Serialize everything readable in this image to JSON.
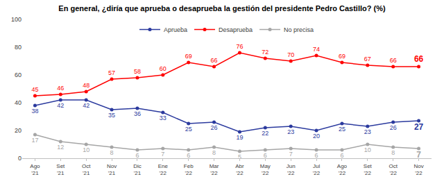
{
  "chart_data": {
    "type": "line",
    "title": "En general, ¿diría que aprueba o desaprueba la gestión del presidente Pedro Castillo? (%)",
    "categories": [
      "Ago '21",
      "Set '21",
      "Oct '21",
      "Nov '21",
      "Dic '21",
      "Ene '22",
      "Feb '22",
      "Mar '22",
      "Abr '22",
      "May '22",
      "Jun '22",
      "Jul '22",
      "Ago '22",
      "Set '22",
      "Oct '22",
      "Nov '22"
    ],
    "series": [
      {
        "name": "Aprueba",
        "color": "#2b3a9e",
        "marker": "circle",
        "values": [
          38,
          42,
          42,
          35,
          36,
          33,
          25,
          26,
          19,
          22,
          23,
          20,
          25,
          23,
          26,
          27
        ]
      },
      {
        "name": "Desaprueba",
        "color": "#ff0000",
        "marker": "circle",
        "values": [
          45,
          46,
          48,
          57,
          58,
          60,
          69,
          66,
          76,
          72,
          70,
          74,
          69,
          67,
          66,
          66
        ]
      },
      {
        "name": "No precisa",
        "color": "#a6a6a6",
        "marker": "circle",
        "values": [
          17,
          12,
          10,
          8,
          6,
          7,
          6,
          8,
          5,
          6,
          7,
          6,
          6,
          10,
          8,
          7
        ]
      }
    ],
    "ylim": [
      0,
      100
    ],
    "yticks": [
      0,
      20,
      40,
      60,
      80,
      100
    ],
    "grid": false,
    "legend": "top",
    "data_labels": true
  }
}
